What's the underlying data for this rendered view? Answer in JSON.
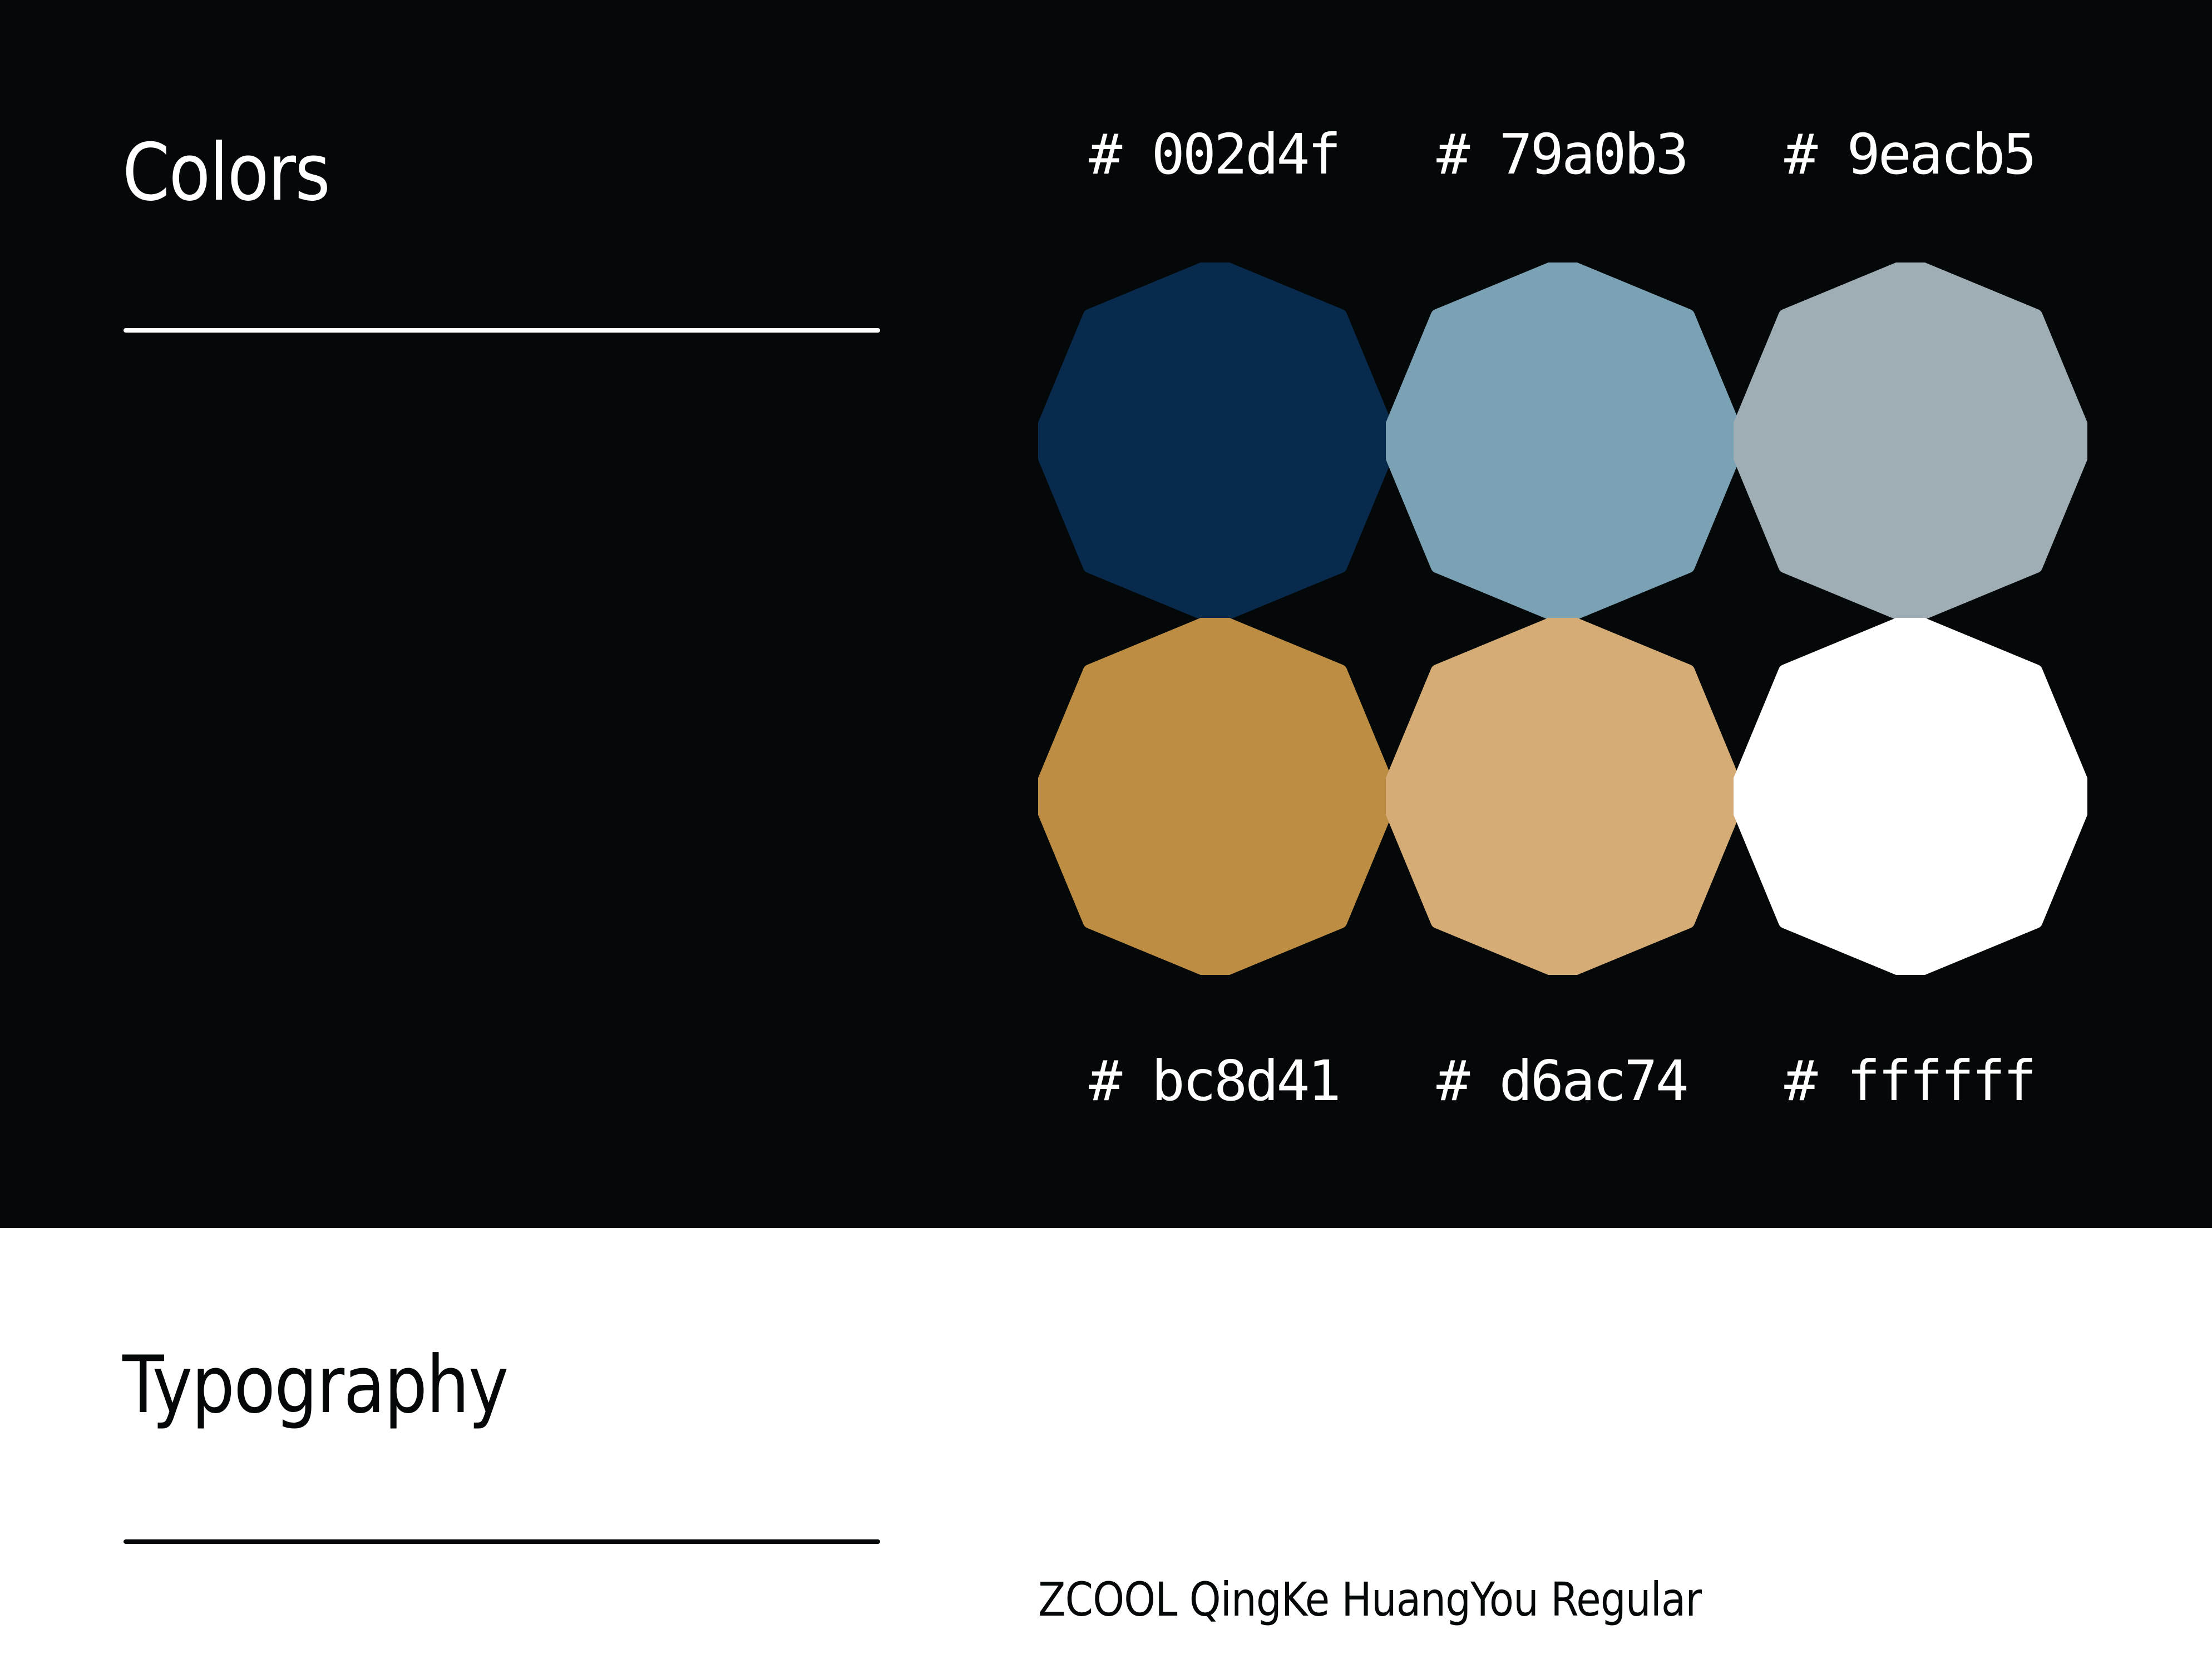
{
  "colors_section": {
    "title": "Colors",
    "swatches": [
      {
        "label": "# 002d4f",
        "color": "#072a4d"
      },
      {
        "label": "# 79a0b3",
        "color": "#7aa1b4"
      },
      {
        "label": "# 9eacb5",
        "color": "#9fadb5"
      },
      {
        "label": "# bc8d41",
        "color": "#bc8d42"
      },
      {
        "label": "# d6ac74",
        "color": "#d5ac76"
      },
      {
        "label": "# ffffff",
        "color": "#ffffff"
      }
    ]
  },
  "typography_section": {
    "title": "Typography",
    "font_name": "ZCOOL QingKe HuangYou Regular"
  },
  "theme": {
    "dark_background": "#050809",
    "light_background": "#ffffff"
  }
}
